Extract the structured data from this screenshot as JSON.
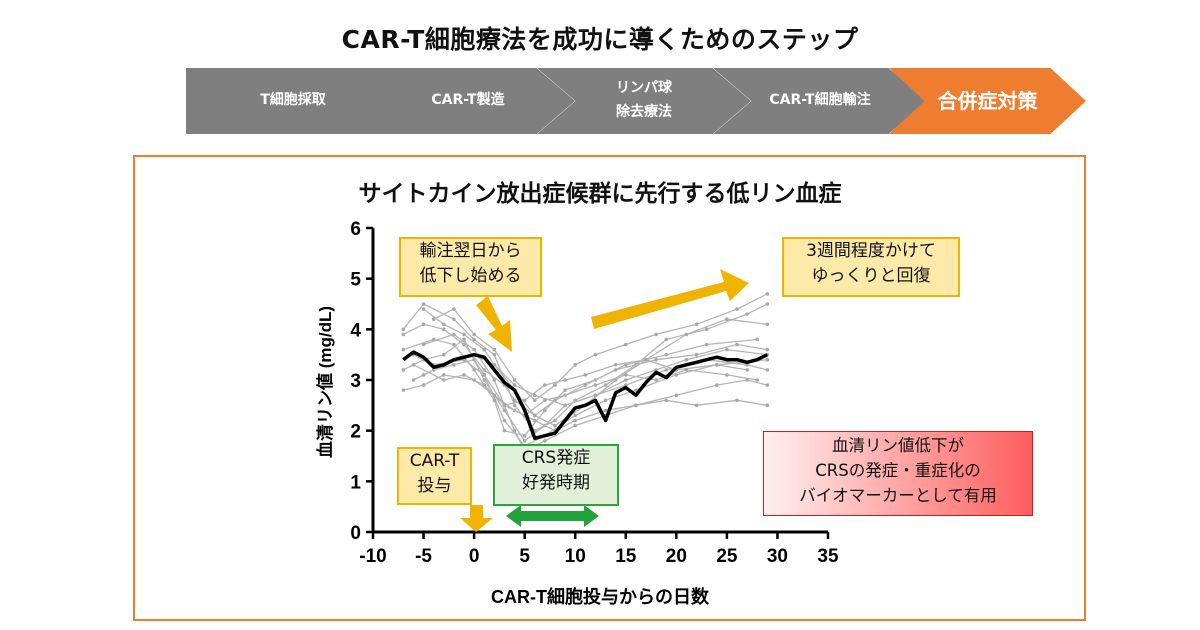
{
  "header": {
    "title": "CAR-T細胞療法を成功に導くためのステップ"
  },
  "steps": [
    {
      "label": "T細胞採取",
      "active": false
    },
    {
      "label": "CAR-T製造",
      "active": false
    },
    {
      "label": "リンパ球\n除去療法",
      "active": false
    },
    {
      "label": "CAR-T細胞輸注",
      "active": false
    },
    {
      "label": "合併症対策",
      "active": true
    }
  ],
  "callouts": {
    "decline": "輸注翌日から\n低下し始める",
    "recovery": "3週間程度かけて\nゆっくりと回復",
    "cart_dose": "CAR-T\n投与",
    "crs_period": "CRS発症\n好発時期",
    "biomarker": "血清リン値低下が\nCRSの発症・重症化の\nバイオマーカーとして有用"
  },
  "colors": {
    "accent": "#ef7d2f",
    "step_gray": "#7f7f7f",
    "callout_yellow": "#f0b400",
    "callout_green": "#2aa53a",
    "callout_red": "#d21b1b",
    "mean_line": "#000000",
    "patient_lines": "#b5b5b5"
  },
  "chart_data": {
    "type": "line",
    "title": "サイトカイン放出症候群に先行する低リン血症",
    "xlabel": "CAR-T細胞投与からの日数",
    "ylabel": "血清リン値 (mg/dL)",
    "xlim": [
      -10,
      35
    ],
    "ylim": [
      0,
      6
    ],
    "xticks": [
      -10,
      -5,
      0,
      5,
      10,
      15,
      20,
      25,
      30,
      35
    ],
    "yticks": [
      0,
      1,
      2,
      3,
      4,
      5,
      6
    ],
    "series": [
      {
        "role": "mean",
        "x": [
          -7,
          -6,
          -5,
          -4,
          -3,
          -2,
          -1,
          0,
          1,
          2,
          3,
          4,
          5,
          6,
          7,
          8,
          9,
          10,
          11,
          12,
          13,
          14,
          15,
          16,
          17,
          18,
          19,
          20,
          21,
          22,
          23,
          24,
          25,
          26,
          27,
          28,
          29
        ],
        "y": [
          3.4,
          3.55,
          3.45,
          3.25,
          3.3,
          3.4,
          3.45,
          3.5,
          3.45,
          3.2,
          2.95,
          2.8,
          2.4,
          1.85,
          1.9,
          1.95,
          2.2,
          2.45,
          2.5,
          2.6,
          2.2,
          2.75,
          2.85,
          2.7,
          2.95,
          3.15,
          3.05,
          3.25,
          3.3,
          3.35,
          3.4,
          3.45,
          3.4,
          3.4,
          3.35,
          3.4,
          3.5
        ]
      },
      {
        "role": "patient",
        "x": [
          -7,
          -5,
          -3,
          -1,
          1,
          3,
          5,
          7,
          9,
          12,
          15,
          18,
          21,
          25,
          29
        ],
        "y": [
          3.2,
          3.4,
          3.5,
          3.8,
          3.0,
          2.4,
          1.8,
          2.1,
          2.5,
          2.7,
          3.0,
          3.2,
          3.4,
          3.6,
          3.5
        ]
      },
      {
        "role": "patient",
        "x": [
          -7,
          -5,
          -2,
          0,
          2,
          4,
          6,
          8,
          10,
          13,
          16,
          19,
          23,
          27,
          29
        ],
        "y": [
          4.0,
          4.5,
          4.2,
          3.8,
          3.5,
          2.5,
          2.0,
          2.2,
          2.6,
          2.9,
          3.3,
          3.8,
          4.0,
          4.3,
          4.5
        ]
      },
      {
        "role": "patient",
        "x": [
          -6,
          -4,
          -2,
          0,
          1,
          3,
          5,
          7,
          10,
          13,
          16,
          20,
          24,
          27
        ],
        "y": [
          3.0,
          3.2,
          3.3,
          3.4,
          3.1,
          2.2,
          1.7,
          1.9,
          2.3,
          2.6,
          2.8,
          3.1,
          3.3,
          3.2
        ]
      },
      {
        "role": "patient",
        "x": [
          -5,
          -3,
          -1,
          1,
          2,
          4,
          6,
          8,
          11,
          14,
          17,
          21,
          25,
          29
        ],
        "y": [
          4.4,
          4.1,
          3.9,
          3.6,
          3.3,
          2.8,
          2.3,
          2.1,
          2.5,
          3.0,
          3.4,
          3.9,
          4.2,
          4.1
        ]
      },
      {
        "role": "patient",
        "x": [
          -7,
          -4,
          -2,
          0,
          2,
          3,
          5,
          7,
          9,
          12,
          15,
          19,
          23,
          28
        ],
        "y": [
          3.6,
          3.8,
          3.7,
          3.2,
          2.6,
          2.0,
          1.9,
          2.4,
          2.8,
          3.0,
          3.3,
          3.5,
          3.7,
          3.8
        ]
      },
      {
        "role": "patient",
        "x": [
          -6,
          -3,
          -1,
          1,
          3,
          5,
          7,
          9,
          11,
          14,
          17,
          20,
          24,
          29
        ],
        "y": [
          3.3,
          3.0,
          3.1,
          2.9,
          2.5,
          2.6,
          2.9,
          3.0,
          3.1,
          3.3,
          3.4,
          3.2,
          3.3,
          3.4
        ]
      },
      {
        "role": "patient",
        "x": [
          -5,
          -2,
          0,
          2,
          4,
          5,
          7,
          10,
          13,
          16,
          20,
          24,
          27,
          29
        ],
        "y": [
          3.7,
          3.9,
          3.6,
          3.0,
          2.0,
          1.6,
          1.8,
          2.1,
          2.3,
          2.5,
          2.7,
          2.9,
          3.0,
          2.9
        ]
      },
      {
        "role": "patient",
        "x": [
          -7,
          -5,
          -3,
          0,
          2,
          4,
          6,
          8,
          10,
          13,
          16,
          19,
          22,
          26,
          29
        ],
        "y": [
          2.8,
          2.9,
          3.1,
          3.0,
          2.7,
          2.4,
          2.2,
          2.0,
          2.2,
          2.4,
          2.5,
          2.6,
          2.5,
          2.6,
          2.5
        ]
      },
      {
        "role": "patient",
        "x": [
          -4,
          -2,
          0,
          2,
          4,
          6,
          8,
          10,
          12,
          15,
          18,
          22,
          26,
          29
        ],
        "y": [
          4.2,
          4.4,
          3.9,
          3.6,
          3.0,
          2.6,
          2.9,
          3.3,
          3.5,
          3.7,
          3.9,
          4.1,
          4.4,
          4.7
        ]
      },
      {
        "role": "patient",
        "x": [
          -6,
          -4,
          -1,
          1,
          3,
          5,
          7,
          9,
          12,
          15,
          18,
          21,
          25,
          28
        ],
        "y": [
          3.5,
          3.3,
          3.4,
          3.1,
          2.5,
          2.3,
          2.6,
          2.7,
          2.9,
          3.1,
          3.0,
          3.2,
          3.1,
          3.0
        ]
      },
      {
        "role": "patient",
        "x": [
          -7,
          -5,
          -3,
          -1,
          1,
          3,
          4,
          6,
          8,
          11,
          14,
          18,
          22,
          26,
          29
        ],
        "y": [
          3.9,
          4.1,
          4.0,
          3.7,
          3.2,
          2.9,
          2.6,
          2.3,
          2.6,
          2.9,
          3.2,
          3.4,
          3.5,
          3.7,
          3.6
        ]
      },
      {
        "role": "patient",
        "x": [
          -5,
          -3,
          0,
          2,
          4,
          6,
          9,
          12,
          15,
          19,
          23,
          27,
          29
        ],
        "y": [
          3.1,
          3.3,
          3.5,
          3.3,
          2.9,
          2.7,
          2.5,
          2.7,
          2.9,
          3.2,
          3.4,
          3.3,
          3.2
        ]
      }
    ]
  }
}
